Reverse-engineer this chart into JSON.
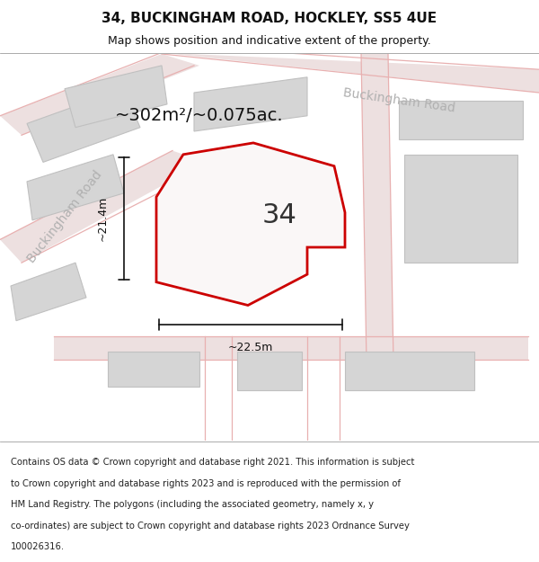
{
  "title": "34, BUCKINGHAM ROAD, HOCKLEY, SS5 4UE",
  "subtitle": "Map shows position and indicative extent of the property.",
  "footer_lines": [
    "Contains OS data © Crown copyright and database right 2021. This information is subject",
    "to Crown copyright and database rights 2023 and is reproduced with the permission of",
    "HM Land Registry. The polygons (including the associated geometry, namely x, y",
    "co-ordinates) are subject to Crown copyright and database rights 2023 Ordnance Survey",
    "100026316."
  ],
  "area_label": "~302m²/~0.075ac.",
  "number_label": "34",
  "dim_h": "~21.4m",
  "dim_w": "~22.5m",
  "road_label_left": "Buckingham Road",
  "road_label_right": "Buckingham Road",
  "map_bg": "#eeecec",
  "building_color": "#d5d5d5",
  "building_edge": "#c0c0c0",
  "plot_edge_color": "#cc0000",
  "plot_fill_color": "#faf7f7",
  "dim_line_color": "#111111",
  "title_color": "#111111",
  "footer_color": "#222222",
  "road_label_color": "#b0b0b0",
  "area_label_color": "#111111",
  "number_color": "#333333",
  "separator_color": "#888888",
  "title_fontsize": 11,
  "subtitle_fontsize": 9,
  "footer_fontsize": 7.2,
  "area_fontsize": 14,
  "number_fontsize": 22,
  "road_label_fontsize": 10,
  "dim_fontsize": 9,
  "road_line_color": "#e8b0b0",
  "road_fill_color": "#ede0e0"
}
